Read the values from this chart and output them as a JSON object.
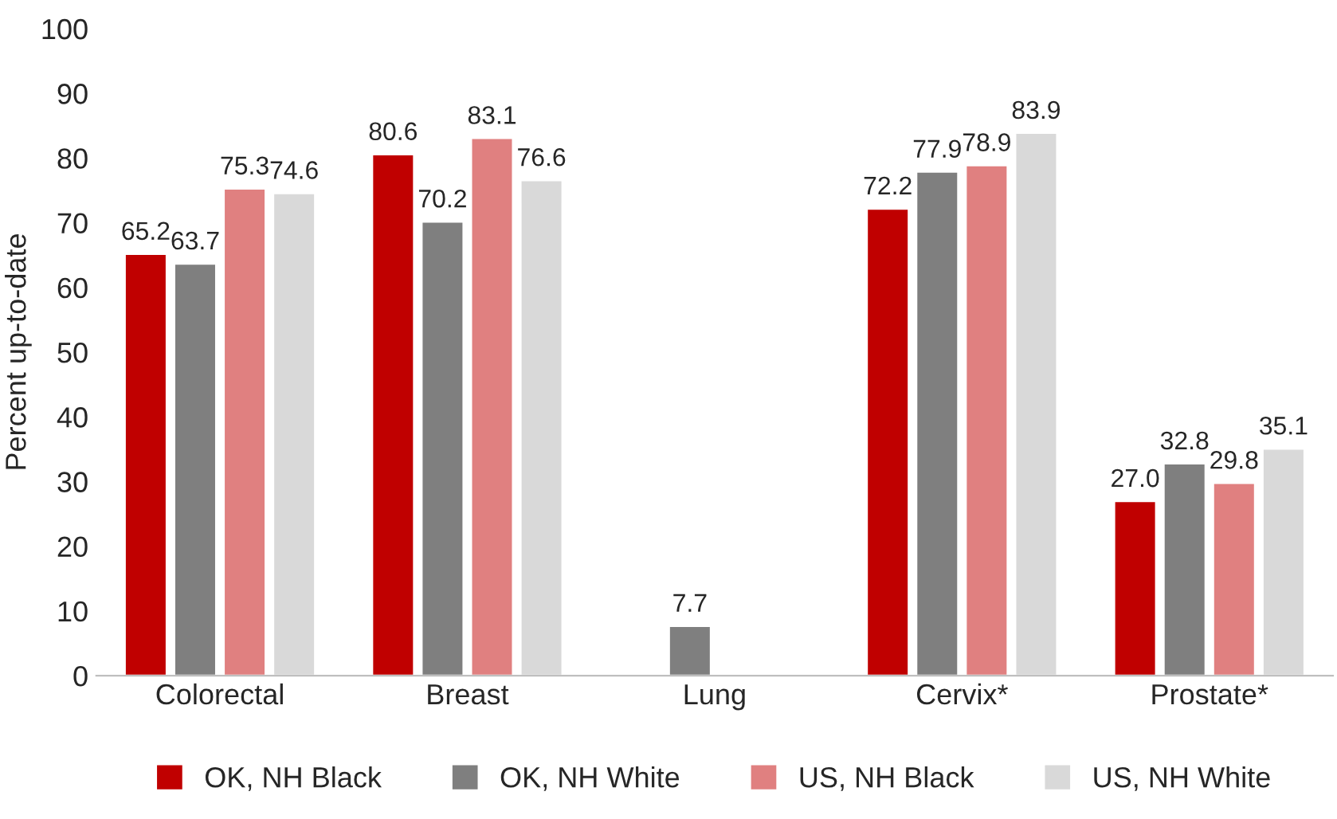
{
  "chart_data": {
    "type": "bar",
    "ylabel": "Percent up-to-date",
    "categories": [
      "Colorectal",
      "Breast",
      "Lung",
      "Cervix*",
      "Prostate*"
    ],
    "series": [
      {
        "name": "OK, NH Black",
        "color": "#c00000",
        "values": [
          65.2,
          80.6,
          null,
          72.2,
          27.0
        ],
        "value_labels": [
          "65.2",
          "80.6",
          null,
          "72.2",
          "27.0"
        ]
      },
      {
        "name": "OK, NH White",
        "color": "#7f7f7f",
        "values": [
          63.7,
          70.2,
          7.7,
          77.9,
          32.8
        ],
        "value_labels": [
          "63.7",
          "70.2",
          "7.7",
          "77.9",
          "32.8"
        ]
      },
      {
        "name": "US, NH Black",
        "color": "#e08080",
        "values": [
          75.3,
          83.1,
          null,
          78.9,
          29.8
        ],
        "value_labels": [
          "75.3",
          "83.1",
          null,
          "78.9",
          "29.8"
        ]
      },
      {
        "name": "US, NH White",
        "color": "#d9d9d9",
        "values": [
          74.6,
          76.6,
          null,
          83.9,
          35.1
        ],
        "value_labels": [
          "74.6",
          "76.6",
          null,
          "83.9",
          "35.1"
        ]
      }
    ],
    "ylim": [
      0,
      100
    ],
    "yticks": [
      0,
      10,
      20,
      30,
      40,
      50,
      60,
      70,
      80,
      90,
      100
    ],
    "grid": false,
    "legend": "bottom"
  }
}
